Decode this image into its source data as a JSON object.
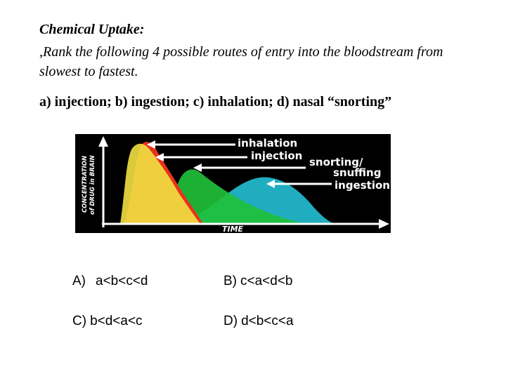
{
  "header": {
    "title": "Chemical Uptake:",
    "prompt": ",Rank the following 4 possible routes of entry into the bloodstream from slowest to fastest.",
    "routes": "a) injection; b) ingestion; c) inhalation; d) nasal “snorting”"
  },
  "figure": {
    "y_axis_line1": "CONCENTRATION",
    "y_axis_line2": "of DRUG in BRAIN",
    "x_axis": "TIME",
    "labels": {
      "inhalation": "inhalation",
      "injection": "injection",
      "snorting": "snorting/",
      "snuffing": "snuffing",
      "ingestion": "ingestion"
    },
    "colors": {
      "background": "#000000",
      "inhalation": "#e8321e",
      "injection": "#f0e040",
      "snorting": "#1fbf3a",
      "ingestion": "#22b6c9",
      "arrows": "#ffffff"
    }
  },
  "options": {
    "a_letter": "A)",
    "a_text": "a<b<c<d",
    "b_letter": "B)",
    "b_text": "c<a<d<b",
    "c_letter": "C)",
    "c_text": "b<d<a<c",
    "d_letter": "D)",
    "d_text": "d<b<c<a"
  }
}
